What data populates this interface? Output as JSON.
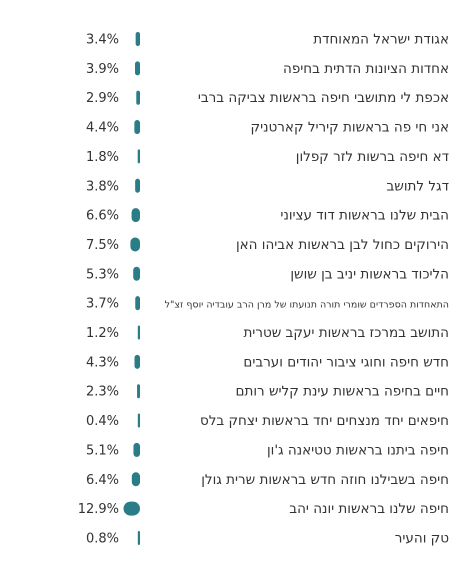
{
  "chart_data": {
    "type": "bar",
    "orientation": "horizontal",
    "value_suffix": "%",
    "bar_color": "#2a7d86",
    "categories": [
      "אגודת ישראל המאוחדת",
      "אחדות הציונות הדתית בחיפה",
      "אכפת לי מתושבי חיפה בראשות צביקה ברבי",
      "אני חי פה בראשות קיריל קארטניק",
      "דא חיפה ברשות לזר קפלון",
      "דגל לתושב",
      "הבית שלנו בראשות דוד עציוני",
      "הירוקים כחול לבן בראשות אביהו האן",
      "הליכוד בראשות יניב בן שושן",
      "התאחדות הספרדים שומרי תורה תנועתו של מרן הרב עובדיה יוסף זצ\"ל",
      "התושב במרכז בראשות יעקב שטרית",
      "חדש חיפה וחוגי ציבור יהודים וערבים",
      "חיים בחיפה בראשות עינת קליש רותם",
      "חיפאים יחד מנצחים יחד בראשות יצחק בלס",
      "חיפה ביתנו בראשות טטיאנה ג'ון",
      "חיפה בשבילנו חוזה חדש בראשות שרית גולן",
      "חיפה שלנו בראשות יונה יהב",
      "טק והעיר"
    ],
    "values": [
      3.4,
      3.9,
      2.9,
      4.4,
      1.8,
      3.8,
      6.6,
      7.5,
      5.3,
      3.7,
      1.2,
      4.3,
      2.3,
      0.4,
      5.1,
      6.4,
      12.9,
      0.8
    ],
    "value_labels": [
      "3.4%",
      "3.9%",
      "2.9%",
      "4.4%",
      "1.8%",
      "3.8%",
      "6.6%",
      "7.5%",
      "5.3%",
      "3.7%",
      "1.2%",
      "4.3%",
      "2.3%",
      "0.4%",
      "5.1%",
      "6.4%",
      "12.9%",
      "0.8%"
    ]
  }
}
